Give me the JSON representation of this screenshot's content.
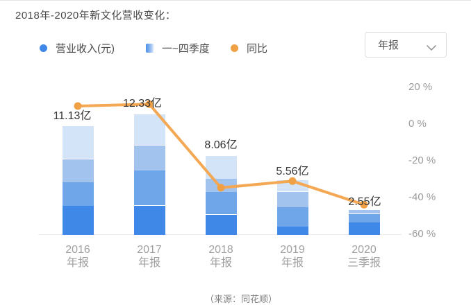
{
  "page": {
    "title": "2018年-2020年新文化营收变化：",
    "source_note": "（来源：同花顺）"
  },
  "legend": {
    "items": [
      {
        "label": "营业收入(元)",
        "marker": "dot",
        "color": "#3f88e8"
      },
      {
        "label": "一~四季度",
        "marker": "gradient-bar",
        "color": "#4a90e8"
      },
      {
        "label": "同比",
        "marker": "dot",
        "color": "#f0a145"
      }
    ]
  },
  "dropdown": {
    "value": "年报",
    "icon": "chevron-down"
  },
  "chart_data": {
    "type": "bar",
    "subtype": "stacked-bar-with-line",
    "title": "2018年-2020年新文化营收变化：",
    "categories": [
      "2016 年报",
      "2017 年报",
      "2018 年报",
      "2019 年报",
      "2020 三季报"
    ],
    "category_lines": [
      [
        "2016",
        "年报"
      ],
      [
        "2017",
        "年报"
      ],
      [
        "2018",
        "年报"
      ],
      [
        "2019",
        "年报"
      ],
      [
        "2020",
        "三季报"
      ]
    ],
    "unit": "亿",
    "totals": [
      11.13,
      12.33,
      8.06,
      5.56,
      2.55
    ],
    "total_labels": [
      "11.13亿",
      "12.33亿",
      "8.06亿",
      "5.56亿",
      "2.55亿"
    ],
    "series_note": "segments are quarterly revenue stacked bottom-up (Q1 at bottom)",
    "segments_bottom_up": [
      [
        2.98,
        2.41,
        2.34,
        3.4
      ],
      [
        2.98,
        3.62,
        2.55,
        3.18
      ],
      [
        2.06,
        2.27,
        1.35,
        2.38
      ],
      [
        0.85,
        1.99,
        1.56,
        1.16
      ],
      [
        1.28,
        0.85,
        0.42
      ]
    ],
    "segment_colors_bottom_up": [
      "#3f88e8",
      "#6fa6ea",
      "#a3c3ef",
      "#d3e3f8"
    ],
    "line": {
      "name": "同比",
      "values_pct": [
        9.8,
        10.8,
        -34.6,
        -31.0,
        -43.8
      ],
      "color": "#f4a853",
      "marker_color": "#f0a145"
    },
    "right_axis": {
      "ticks": [
        "20 %",
        "0 %",
        "-20 %",
        "-40 %",
        "-60 %"
      ],
      "tick_values": [
        20,
        0,
        -20,
        -40,
        -60
      ],
      "ylim": [
        -60,
        20
      ]
    },
    "grid": false,
    "legend_position": "top-left"
  }
}
